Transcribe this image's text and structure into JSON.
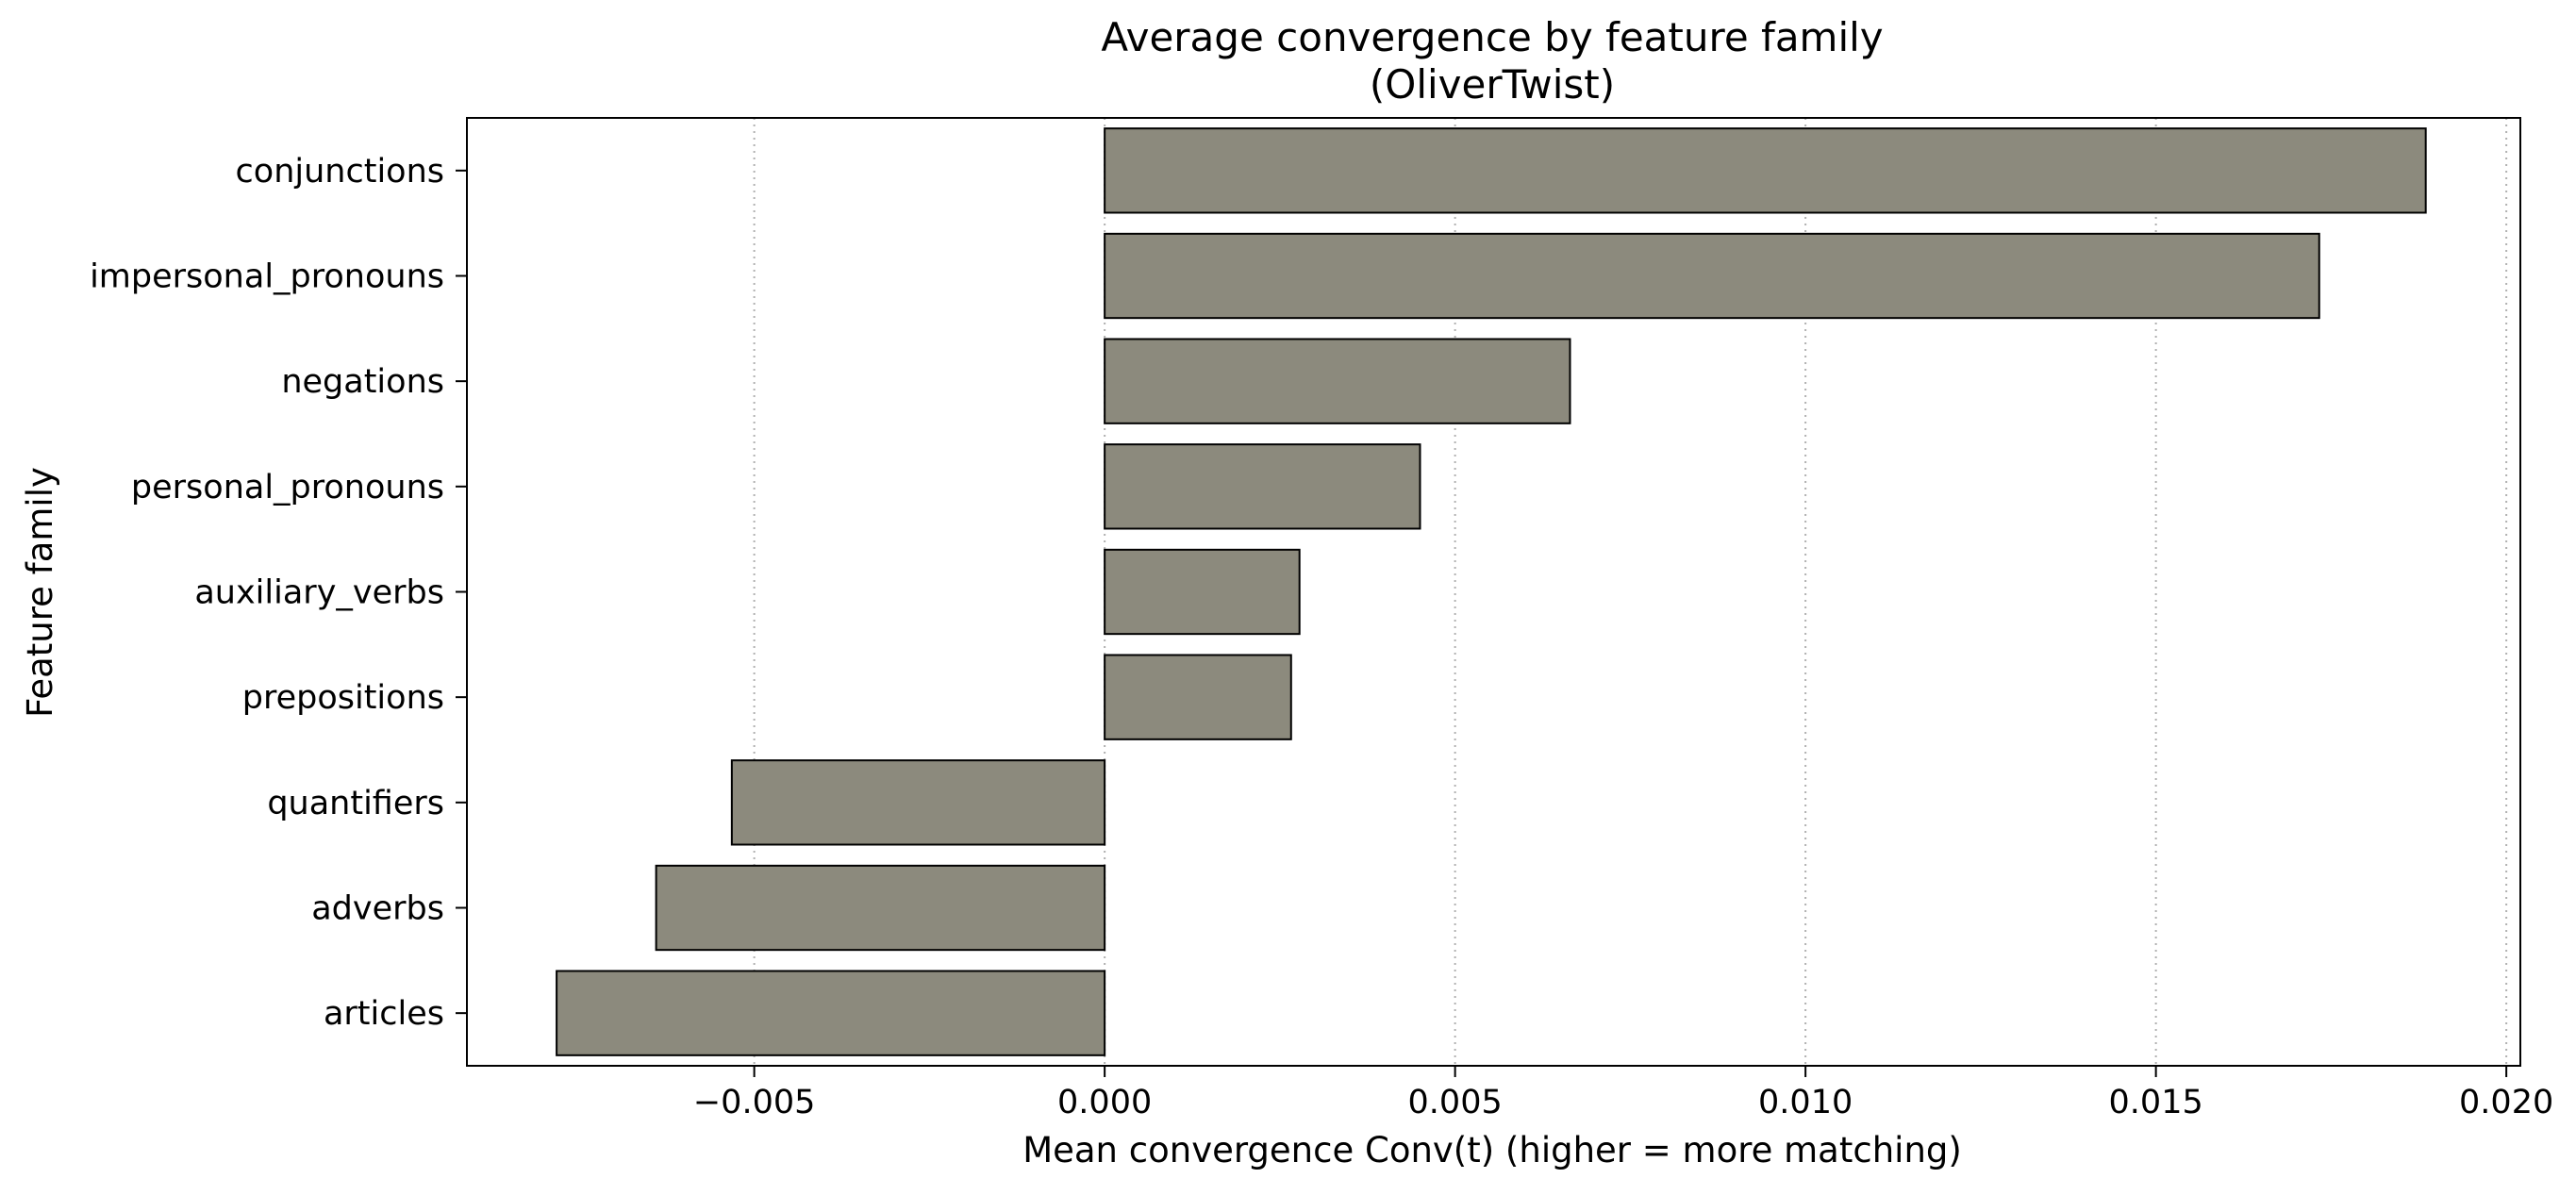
{
  "chart_data": {
    "type": "bar",
    "orientation": "horizontal",
    "title": "Average convergence by feature family",
    "subtitle": "(OliverTwist)",
    "xlabel": "Mean convergence Conv(t) (higher = more matching)",
    "ylabel": "Feature family",
    "categories": [
      "conjunctions",
      "impersonal_pronouns",
      "negations",
      "personal_pronouns",
      "auxiliary_verbs",
      "prepositions",
      "quantifiers",
      "adverbs",
      "articles"
    ],
    "values": [
      0.01885,
      0.01733,
      0.00664,
      0.0045,
      0.00278,
      0.00266,
      -0.00532,
      -0.0064,
      -0.00782
    ],
    "xlim": [
      -0.0091,
      0.0202
    ],
    "xticks": [
      -0.005,
      0.0,
      0.005,
      0.01,
      0.015,
      0.02
    ],
    "xtick_labels": [
      "−0.005",
      "0.000",
      "0.005",
      "0.010",
      "0.015",
      "0.020"
    ],
    "grid": "x, dotted",
    "legend": "none",
    "bar_color": "#8c8a7d",
    "edge_color": "#000000"
  }
}
